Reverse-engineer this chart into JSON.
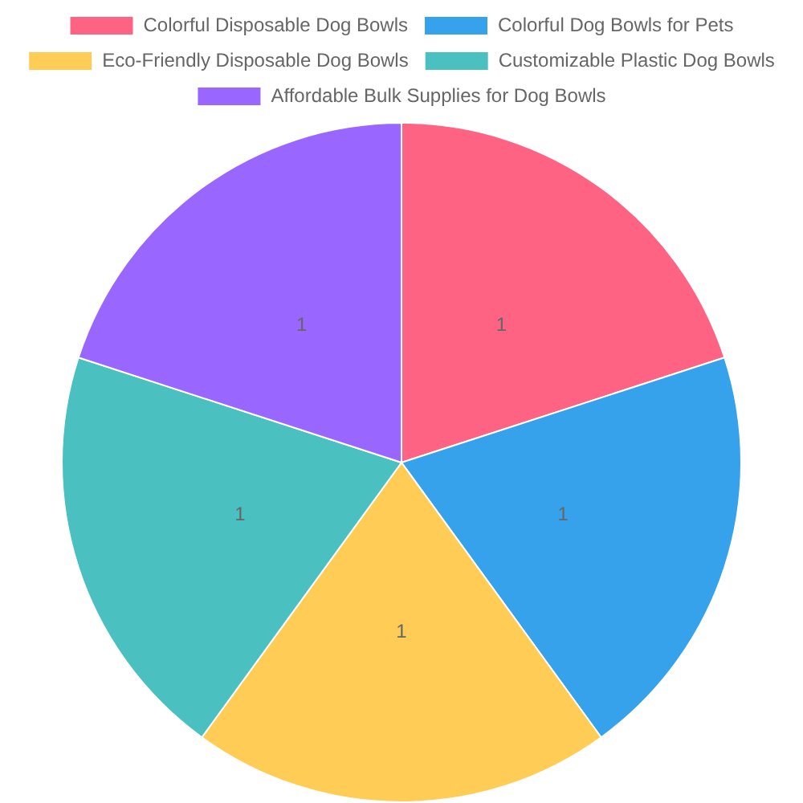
{
  "chart_data": {
    "type": "pie",
    "categories": [
      "Colorful Disposable Dog Bowls",
      "Colorful Dog Bowls for Pets",
      "Eco-Friendly Disposable Dog Bowls",
      "Customizable Plastic Dog Bowls",
      "Affordable Bulk Supplies for Dog Bowls"
    ],
    "values": [
      1,
      1,
      1,
      1,
      1
    ],
    "colors": [
      "#ff6384",
      "#36a2eb",
      "#ffcd56",
      "#4bc0c0",
      "#9966ff"
    ],
    "data_labels": true,
    "legend": "top"
  }
}
